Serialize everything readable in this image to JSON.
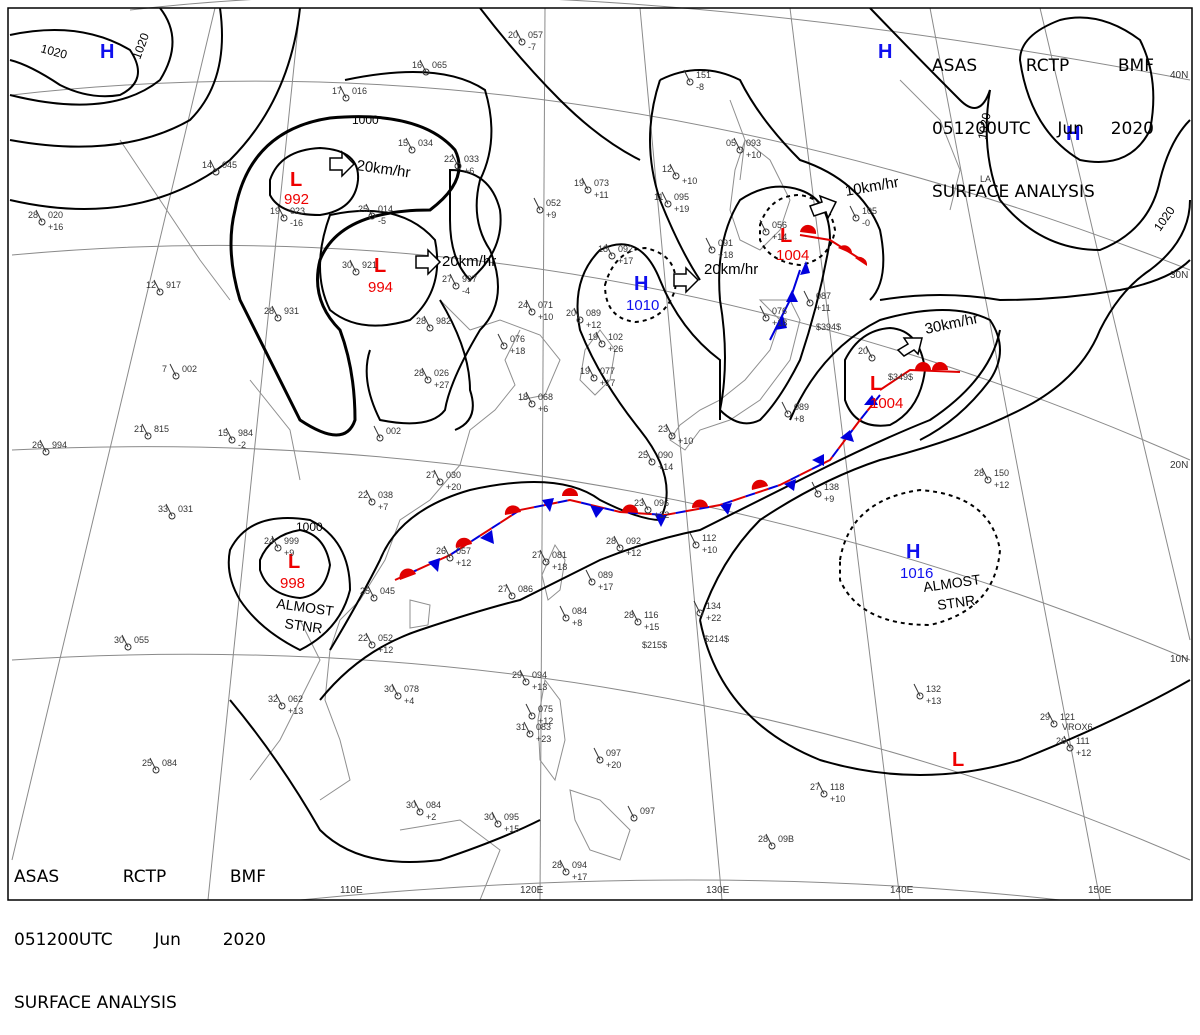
{
  "header": {
    "agency": [
      "ASAS",
      "RCTP",
      "BMF"
    ],
    "time": [
      "051200UTC",
      "Jun",
      "2020"
    ],
    "title": "SURFACE ANALYSIS"
  },
  "colors": {
    "high": "#1010ee",
    "low": "#ee0000",
    "isobar": "#000000",
    "grid": "#7a7a7a",
    "coast": "#8a8a8a"
  },
  "lat_labels": [
    "40N",
    "30N",
    "20N",
    "10N"
  ],
  "lon_labels": [
    "110E",
    "120E",
    "130E",
    "140E",
    "150E"
  ],
  "isobar_labels": [
    "1020",
    "1020",
    "1000",
    "1000",
    "1020",
    "1020"
  ],
  "centers": [
    {
      "type": "H",
      "symbol": "H",
      "value": ""
    },
    {
      "type": "L",
      "symbol": "L",
      "value": "992"
    },
    {
      "type": "L",
      "symbol": "L",
      "value": "994"
    },
    {
      "type": "H",
      "symbol": "H",
      "value": "1010"
    },
    {
      "type": "L",
      "symbol": "L",
      "value": "1004"
    },
    {
      "type": "L",
      "symbol": "L",
      "value": "1004"
    },
    {
      "type": "L",
      "symbol": "L",
      "value": "998"
    },
    {
      "type": "H",
      "symbol": "H",
      "value": "1016"
    },
    {
      "type": "H",
      "symbol": "H",
      "value": ""
    },
    {
      "type": "H",
      "symbol": "H",
      "value": ""
    },
    {
      "type": "L",
      "symbol": "L",
      "value": ""
    }
  ],
  "movements": [
    "20km/hr",
    "20km/hr",
    "20km/hr",
    "10km/hr",
    "30km/hr"
  ],
  "notes": [
    {
      "line1": "ALMOST",
      "line2": "STNR"
    },
    {
      "line1": "ALMOST",
      "line2": "STNR"
    }
  ],
  "stations": [
    {
      "t": "20",
      "p": "057",
      "d": "-7"
    },
    {
      "t": "16",
      "p": "065",
      "d": ""
    },
    {
      "t": "17",
      "p": "016",
      "d": ""
    },
    {
      "t": "15",
      "p": "034",
      "d": ""
    },
    {
      "t": "22",
      "p": "033",
      "d": "+6"
    },
    {
      "t": "14",
      "p": "045",
      "d": ""
    },
    {
      "t": "19",
      "p": "023",
      "d": "-16"
    },
    {
      "t": "25",
      "p": "014",
      "d": "-5"
    },
    {
      "t": "30",
      "p": "921",
      "d": ""
    },
    {
      "t": "27",
      "p": "997",
      "d": "-4"
    },
    {
      "t": "28",
      "p": "020",
      "d": "+16"
    },
    {
      "t": "12",
      "p": "917",
      "d": ""
    },
    {
      "t": "28",
      "p": "931",
      "d": ""
    },
    {
      "t": "28",
      "p": "982",
      "d": ""
    },
    {
      "t": "7",
      "p": "002",
      "d": ""
    },
    {
      "t": "21",
      "p": "815",
      "d": ""
    },
    {
      "t": "15",
      "p": "984",
      "d": "-2"
    },
    {
      "t": "26",
      "p": "994",
      "d": ""
    },
    {
      "t": "33",
      "p": "031",
      "d": ""
    },
    {
      "t": "22",
      "p": "038",
      "d": "+7"
    },
    {
      "t": "27",
      "p": "030",
      "d": "+20"
    },
    {
      "t": "24",
      "p": "999",
      "d": "+9"
    },
    {
      "t": "26",
      "p": "057",
      "d": "+12"
    },
    {
      "t": "25",
      "p": "045",
      "d": ""
    },
    {
      "t": "22",
      "p": "052",
      "d": "+12"
    },
    {
      "t": "30",
      "p": "055",
      "d": ""
    },
    {
      "t": "18",
      "p": "092",
      "d": "+17"
    },
    {
      "t": "19",
      "p": "073",
      "d": "+11"
    },
    {
      "t": "",
      "p": "052",
      "d": "+9"
    },
    {
      "t": "24",
      "p": "071",
      "d": "+10"
    },
    {
      "t": "20",
      "p": "089",
      "d": "+12"
    },
    {
      "t": "19",
      "p": "102",
      "d": "+26"
    },
    {
      "t": "",
      "p": "076",
      "d": "+18"
    },
    {
      "t": "19",
      "p": "077",
      "d": "+17"
    },
    {
      "t": "18",
      "p": "068",
      "d": "+6"
    },
    {
      "t": "28",
      "p": "026",
      "d": "+27"
    },
    {
      "t": "",
      "p": "002",
      "d": ""
    },
    {
      "t": "",
      "p": "151",
      "d": "-8"
    },
    {
      "t": "05",
      "p": "093",
      "d": "+10"
    },
    {
      "t": "12",
      "p": "",
      "d": "+10"
    },
    {
      "t": "11",
      "p": "095",
      "d": "+19"
    },
    {
      "t": "",
      "p": "091",
      "d": "+18"
    },
    {
      "t": "",
      "p": "056",
      "d": "+14"
    },
    {
      "t": "",
      "p": "105",
      "d": "-0"
    },
    {
      "t": "",
      "p": "076",
      "d": "+18"
    },
    {
      "t": "",
      "p": "087",
      "d": "+11"
    },
    {
      "t": "20",
      "p": "",
      "d": ""
    },
    {
      "t": "23",
      "p": "",
      "d": "+10"
    },
    {
      "t": "25",
      "p": "090",
      "d": "+14"
    },
    {
      "t": "",
      "p": "089",
      "d": "+8"
    },
    {
      "t": "23",
      "p": "096",
      "d": "+32"
    },
    {
      "t": "28",
      "p": "092",
      "d": "+12"
    },
    {
      "t": "",
      "p": "112",
      "d": "+10"
    },
    {
      "t": "27",
      "p": "081",
      "d": "+18"
    },
    {
      "t": "",
      "p": "089",
      "d": "+17"
    },
    {
      "t": "27",
      "p": "086",
      "d": ""
    },
    {
      "t": "",
      "p": "084",
      "d": "+8"
    },
    {
      "t": "28",
      "p": "116",
      "d": "+15"
    },
    {
      "t": "",
      "p": "134",
      "d": "+22"
    },
    {
      "t": "",
      "p": "138",
      "d": "+9"
    },
    {
      "t": "28",
      "p": "150",
      "d": "+12"
    },
    {
      "t": "32",
      "p": "062",
      "d": "+13"
    },
    {
      "t": "30",
      "p": "078",
      "d": "+4"
    },
    {
      "t": "29",
      "p": "094",
      "d": "+13"
    },
    {
      "t": "",
      "p": "075",
      "d": "+12"
    },
    {
      "t": "31",
      "p": "083",
      "d": "+23"
    },
    {
      "t": "",
      "p": "097",
      "d": "+20"
    },
    {
      "t": "25",
      "p": "084",
      "d": ""
    },
    {
      "t": "30",
      "p": "084",
      "d": "+2"
    },
    {
      "t": "30",
      "p": "095",
      "d": "+15"
    },
    {
      "t": "",
      "p": "097",
      "d": ""
    },
    {
      "t": "28",
      "p": "094",
      "d": "+17"
    },
    {
      "t": "27",
      "p": "118",
      "d": "+10"
    },
    {
      "t": "28",
      "p": "09B",
      "d": ""
    },
    {
      "t": "",
      "p": "132",
      "d": "+13"
    },
    {
      "t": "29",
      "p": "121",
      "d": ""
    },
    {
      "t": "26",
      "p": "111",
      "d": "+12"
    }
  ],
  "misc_labels": [
    "$394$",
    "$349$",
    "$215$",
    "$214$",
    "VROX6",
    "LA"
  ]
}
